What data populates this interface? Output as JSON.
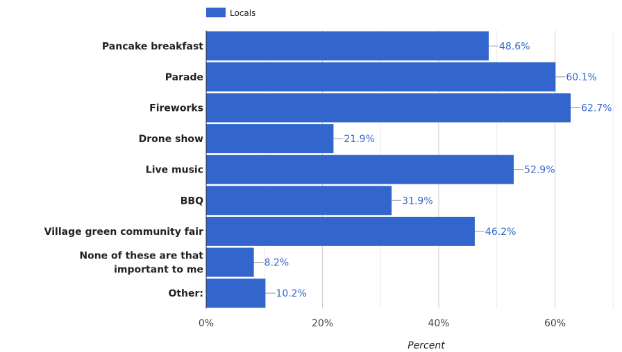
{
  "chart_data": {
    "type": "bar",
    "orientation": "horizontal",
    "categories": [
      [
        "Pancake breakfast"
      ],
      [
        "Parade"
      ],
      [
        "Fireworks"
      ],
      [
        "Drone show"
      ],
      [
        "Live music"
      ],
      [
        "BBQ"
      ],
      [
        "Village green community fair"
      ],
      [
        "None of these are that",
        "important to me"
      ],
      [
        "Other:"
      ]
    ],
    "series": [
      {
        "name": "Locals",
        "color": "#3366cc",
        "values": [
          48.6,
          60.1,
          62.7,
          21.9,
          52.9,
          31.9,
          46.2,
          8.2,
          10.2
        ],
        "value_labels": [
          "48.6%",
          "60.1%",
          "62.7%",
          "21.9%",
          "52.9%",
          "31.9%",
          "46.2%",
          "8.2%",
          "10.2%"
        ]
      }
    ],
    "xlim": [
      0,
      70
    ],
    "x_ticks": [
      0,
      20,
      40,
      60
    ],
    "x_tick_labels": [
      "0%",
      "20%",
      "40%",
      "60%"
    ],
    "xlabel": "Percent",
    "ylabel": "",
    "title": "",
    "grid": true,
    "legend": "top-left"
  }
}
